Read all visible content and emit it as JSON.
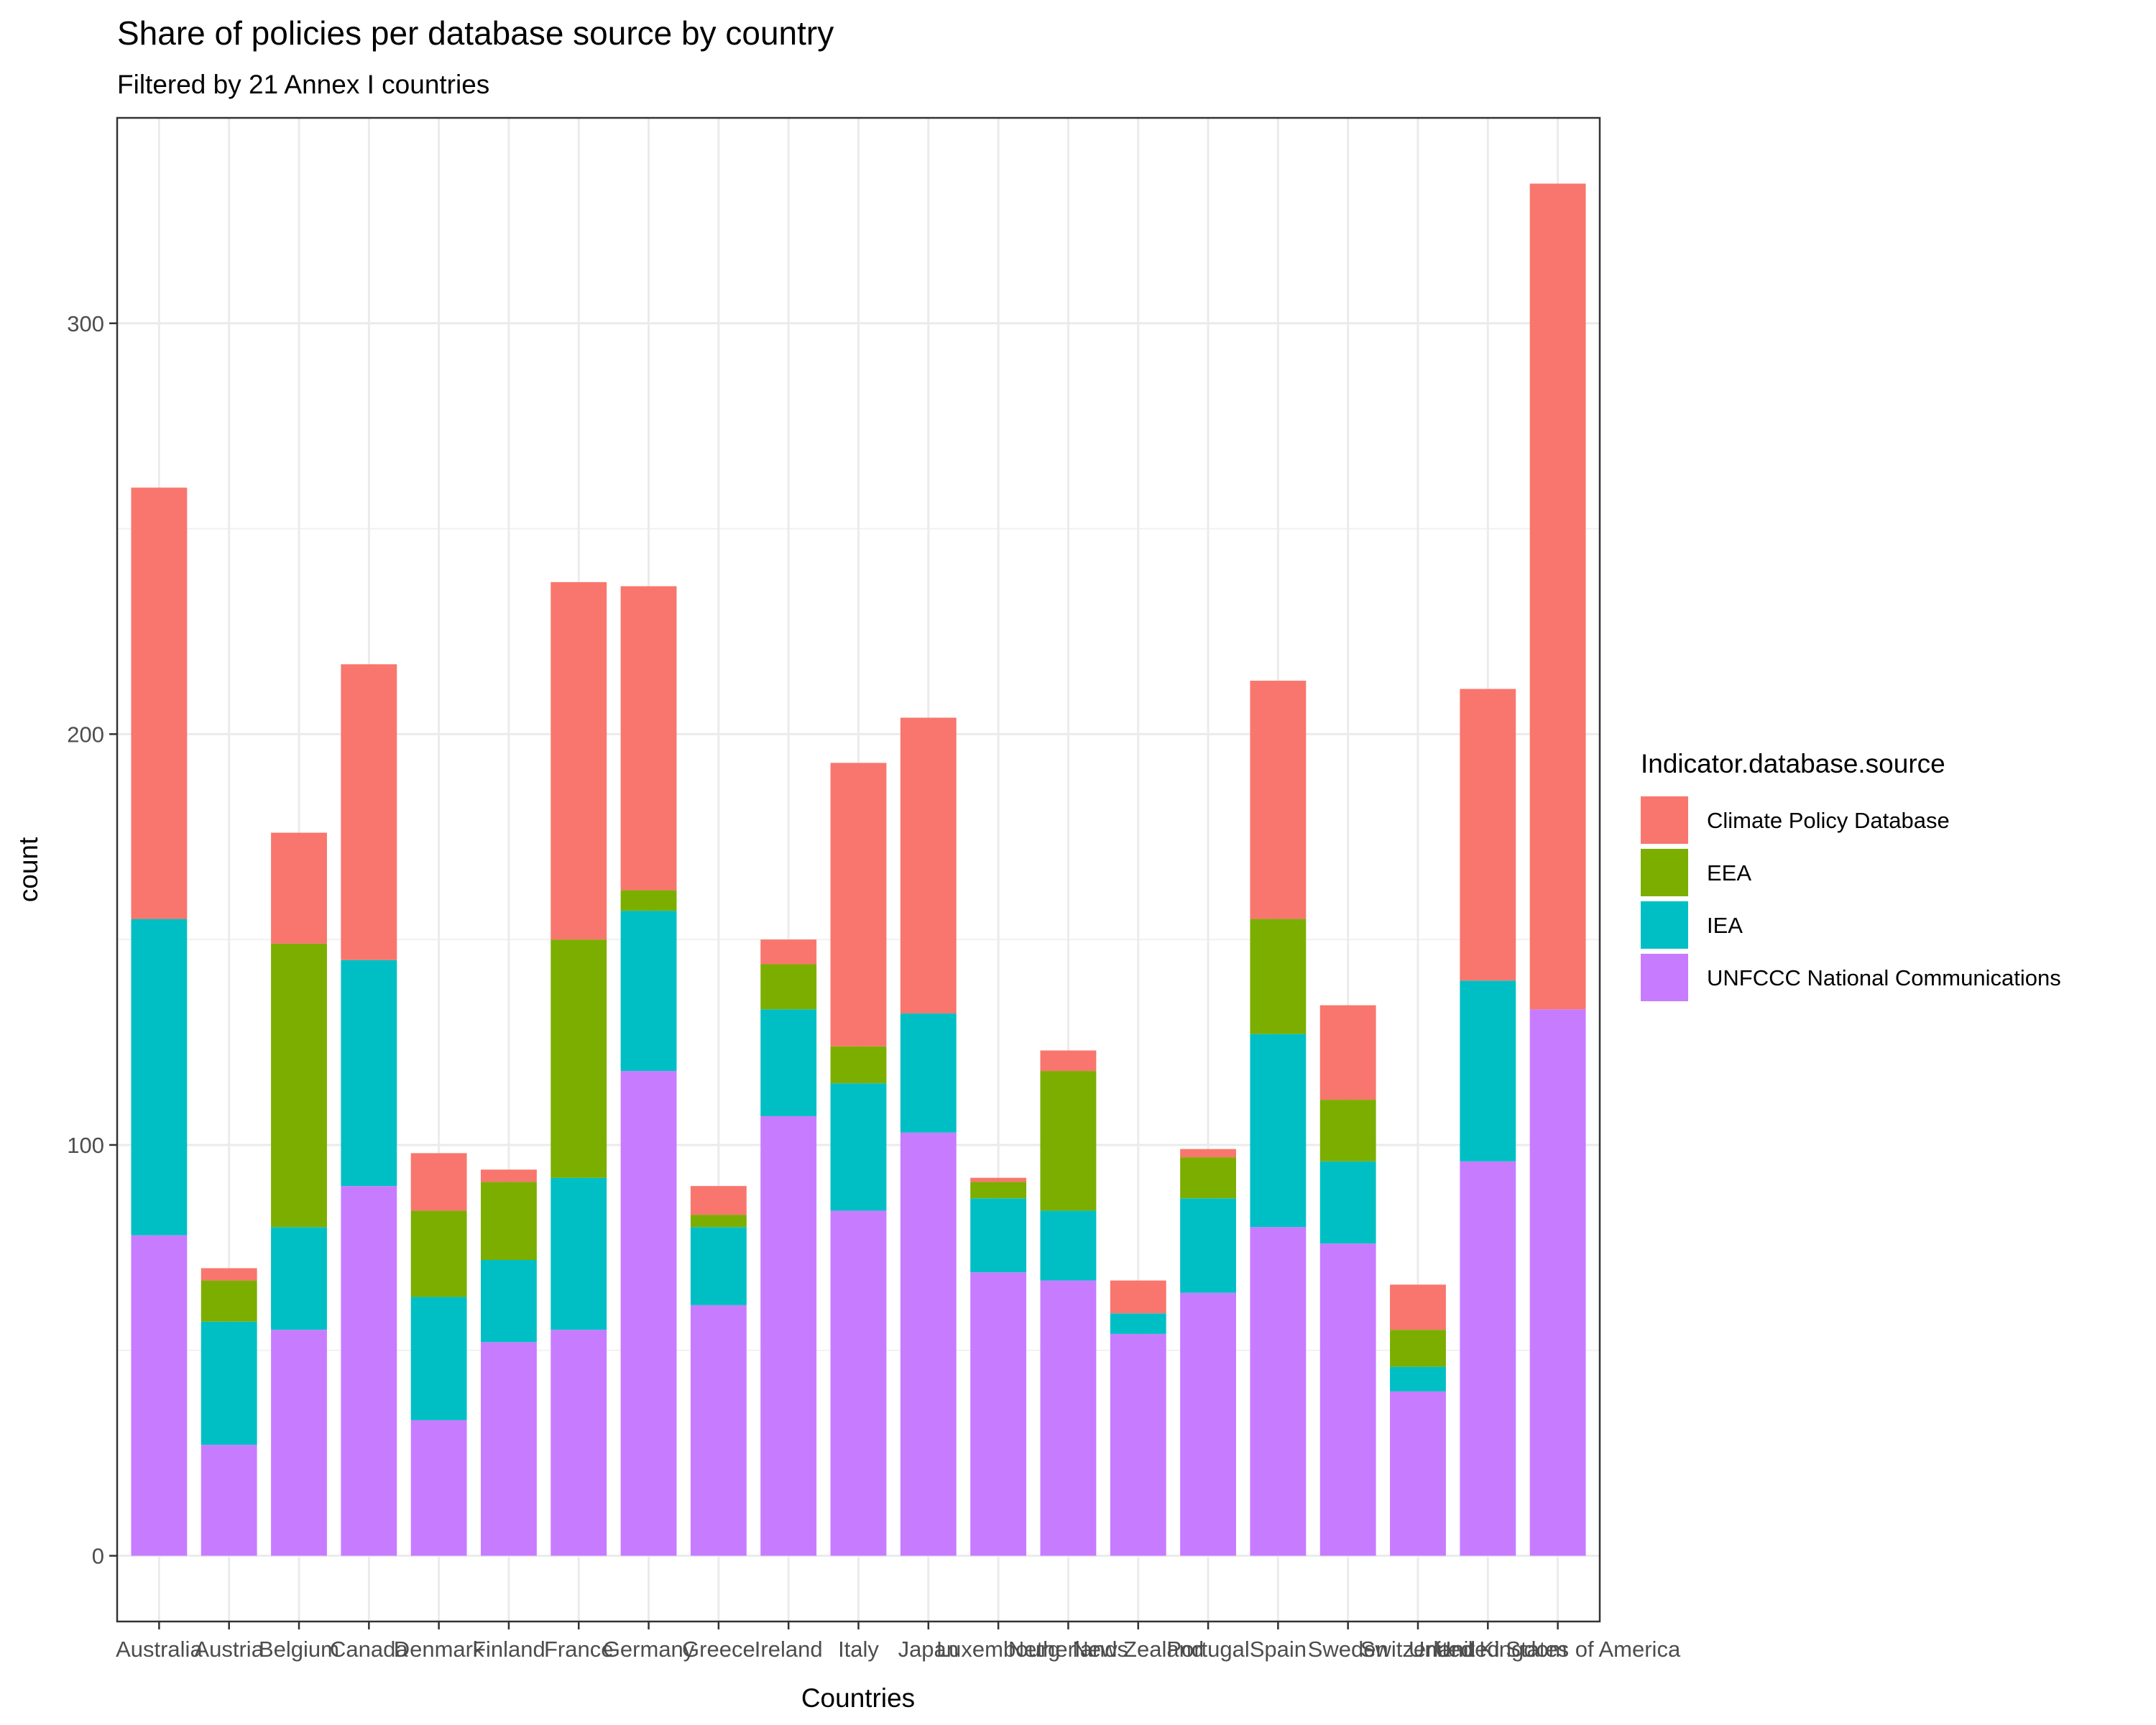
{
  "chart_data": {
    "type": "bar",
    "stacked": true,
    "title": "Share of policies per database source by country",
    "subtitle": "Filtered by 21 Annex I countries",
    "xlabel": "Countries",
    "ylabel": "count",
    "ylim": [
      -16,
      350
    ],
    "yticks": [
      0,
      100,
      200,
      300
    ],
    "grid": true,
    "legend_position": "right",
    "legend_title": "Indicator.database.source",
    "categories": [
      "Australia",
      "Austria",
      "Belgium",
      "Canada",
      "Denmark",
      "Finland",
      "France",
      "Germany",
      "Greece",
      "Ireland",
      "Italy",
      "Japan",
      "Luxembourg",
      "Netherlands",
      "New Zealand",
      "Portugal",
      "Spain",
      "Sweden",
      "Switzerland",
      "United Kingdom",
      "United States of America"
    ],
    "series": [
      {
        "name": "UNFCCC National Communications",
        "color": "#C77CFF",
        "values": [
          78,
          27,
          55,
          90,
          33,
          52,
          55,
          118,
          61,
          107,
          84,
          103,
          69,
          67,
          54,
          64,
          80,
          76,
          40,
          96,
          133
        ]
      },
      {
        "name": "IEA",
        "color": "#00BFC4",
        "values": [
          77,
          30,
          25,
          55,
          30,
          20,
          37,
          39,
          19,
          26,
          31,
          29,
          18,
          17,
          5,
          23,
          47,
          20,
          6,
          44,
          0
        ]
      },
      {
        "name": "EEA",
        "color": "#7CAE00",
        "values": [
          0,
          10,
          69,
          0,
          21,
          19,
          58,
          5,
          3,
          11,
          9,
          0,
          4,
          34,
          0,
          10,
          28,
          15,
          9,
          0,
          0
        ]
      },
      {
        "name": "Climate Policy Database",
        "color": "#F8766D",
        "values": [
          105,
          3,
          27,
          72,
          14,
          3,
          87,
          74,
          7,
          6,
          69,
          72,
          1,
          5,
          8,
          2,
          58,
          23,
          11,
          71,
          201
        ]
      }
    ]
  }
}
